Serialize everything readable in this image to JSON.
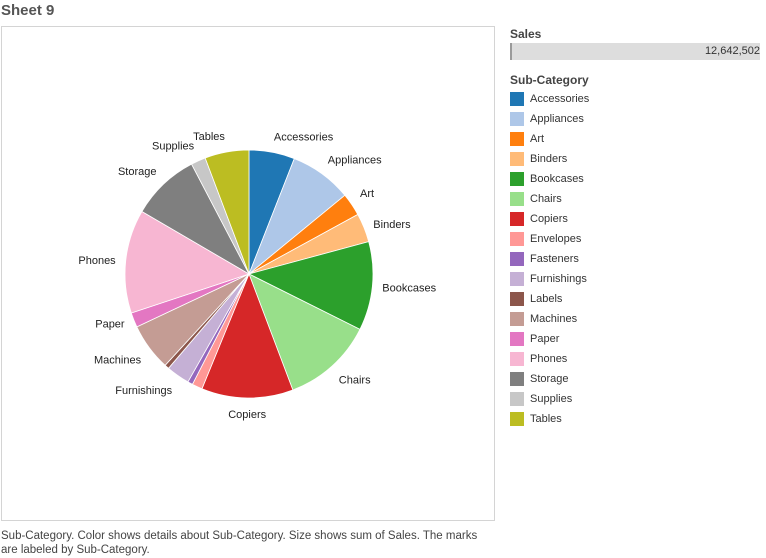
{
  "sheet": {
    "title": "Sheet 9"
  },
  "size_legend": {
    "title": "Sales",
    "value_label": "12,642,502",
    "fill_fraction": 1.0
  },
  "color_legend": {
    "title": "Sub-Category",
    "items": [
      {
        "label": "Accessories",
        "color": "#1f77b4"
      },
      {
        "label": "Appliances",
        "color": "#aec7e8"
      },
      {
        "label": "Art",
        "color": "#ff7f0e"
      },
      {
        "label": "Binders",
        "color": "#ffbb78"
      },
      {
        "label": "Bookcases",
        "color": "#2ca02c"
      },
      {
        "label": "Chairs",
        "color": "#98df8a"
      },
      {
        "label": "Copiers",
        "color": "#d62728"
      },
      {
        "label": "Envelopes",
        "color": "#ff9896"
      },
      {
        "label": "Fasteners",
        "color": "#9467bd"
      },
      {
        "label": "Furnishings",
        "color": "#c5b0d5"
      },
      {
        "label": "Labels",
        "color": "#8c564b"
      },
      {
        "label": "Machines",
        "color": "#c49c94"
      },
      {
        "label": "Paper",
        "color": "#e377c2"
      },
      {
        "label": "Phones",
        "color": "#f7b6d2"
      },
      {
        "label": "Storage",
        "color": "#7f7f7f"
      },
      {
        "label": "Supplies",
        "color": "#c7c7c7"
      },
      {
        "label": "Tables",
        "color": "#bcbd22"
      }
    ]
  },
  "caption": "Sub-Category.  Color shows details about Sub-Category.  Size shows sum of Sales.  The marks are labeled by Sub-Category.",
  "chart_data": {
    "type": "pie",
    "title": "Sheet 9",
    "measure": "Sales",
    "total": 12642502,
    "slices": [
      {
        "label": "Accessories",
        "value": 753000,
        "color": "#1f77b4",
        "labeled": true
      },
      {
        "label": "Appliances",
        "value": 1024000,
        "color": "#aec7e8",
        "labeled": true
      },
      {
        "label": "Art",
        "value": 376000,
        "color": "#ff7f0e",
        "labeled": true
      },
      {
        "label": "Binders",
        "value": 476000,
        "color": "#ffbb78",
        "labeled": true
      },
      {
        "label": "Bookcases",
        "value": 1464000,
        "color": "#2ca02c",
        "labeled": true
      },
      {
        "label": "Chairs",
        "value": 1501000,
        "color": "#98df8a",
        "labeled": true
      },
      {
        "label": "Copiers",
        "value": 1510000,
        "color": "#d62728",
        "labeled": true
      },
      {
        "label": "Envelopes",
        "value": 170000,
        "color": "#ff9896",
        "labeled": false
      },
      {
        "label": "Fasteners",
        "value": 84000,
        "color": "#9467bd",
        "labeled": false
      },
      {
        "label": "Furnishings",
        "value": 385000,
        "color": "#c5b0d5",
        "labeled": true
      },
      {
        "label": "Labels",
        "value": 73000,
        "color": "#8c564b",
        "labeled": false
      },
      {
        "label": "Machines",
        "value": 779000,
        "color": "#c49c94",
        "labeled": true
      },
      {
        "label": "Paper",
        "value": 244000,
        "color": "#e377c2",
        "labeled": true
      },
      {
        "label": "Phones",
        "value": 1706000,
        "color": "#f7b6d2",
        "labeled": true
      },
      {
        "label": "Storage",
        "value": 1128000,
        "color": "#7f7f7f",
        "labeled": true
      },
      {
        "label": "Supplies",
        "value": 243000,
        "color": "#c7c7c7",
        "labeled": true
      },
      {
        "label": "Tables",
        "value": 726502,
        "color": "#bcbd22",
        "labeled": true
      }
    ]
  }
}
